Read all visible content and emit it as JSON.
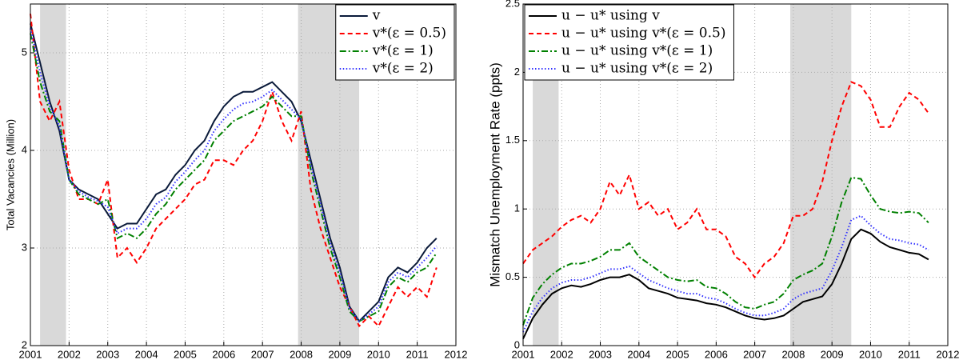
{
  "chart_data": [
    {
      "type": "line",
      "ylabel": "Total Vacancies (Million)",
      "legend": "upper right",
      "grid": true,
      "xlim": [
        2001,
        2012
      ],
      "xticks": [
        2001,
        2002,
        2003,
        2004,
        2005,
        2006,
        2007,
        2008,
        2009,
        2010,
        2011,
        2012
      ],
      "ylim": [
        2,
        5.5
      ],
      "yticks": [
        2,
        3,
        4,
        5
      ],
      "shaded_regions": [
        [
          2001.25,
          2001.92
        ],
        [
          2007.92,
          2009.5
        ]
      ],
      "x": [
        2001,
        2001.25,
        2001.5,
        2001.75,
        2002,
        2002.25,
        2002.5,
        2002.75,
        2003,
        2003.25,
        2003.5,
        2003.75,
        2004,
        2004.25,
        2004.5,
        2004.75,
        2005,
        2005.25,
        2005.5,
        2005.75,
        2006,
        2006.25,
        2006.5,
        2006.75,
        2007,
        2007.25,
        2007.5,
        2007.75,
        2008,
        2008.25,
        2008.5,
        2008.75,
        2009,
        2009.25,
        2009.5,
        2009.75,
        2010,
        2010.25,
        2010.5,
        2010.75,
        2011,
        2011.25,
        2011.5
      ],
      "series": [
        {
          "name": "v",
          "color": "#0a1a3a",
          "style": "solid",
          "values": [
            5.3,
            4.9,
            4.5,
            4.2,
            3.7,
            3.6,
            3.55,
            3.5,
            3.35,
            3.2,
            3.25,
            3.25,
            3.4,
            3.55,
            3.6,
            3.75,
            3.85,
            4.0,
            4.1,
            4.3,
            4.45,
            4.55,
            4.6,
            4.6,
            4.65,
            4.7,
            4.6,
            4.5,
            4.3,
            3.9,
            3.5,
            3.1,
            2.8,
            2.4,
            2.25,
            2.35,
            2.45,
            2.7,
            2.8,
            2.75,
            2.85,
            3.0,
            3.1
          ]
        },
        {
          "name": "v*(ε = 0.5)",
          "color": "#ff0000",
          "style": "dashed",
          "values": [
            5.4,
            4.5,
            4.3,
            4.5,
            3.8,
            3.5,
            3.5,
            3.45,
            3.7,
            2.9,
            3.0,
            2.85,
            3.0,
            3.2,
            3.3,
            3.4,
            3.5,
            3.65,
            3.7,
            3.9,
            3.9,
            3.85,
            4.0,
            4.1,
            4.3,
            4.6,
            4.3,
            4.1,
            4.4,
            3.6,
            3.2,
            2.9,
            2.6,
            2.4,
            2.2,
            2.3,
            2.2,
            2.4,
            2.6,
            2.5,
            2.6,
            2.5,
            2.8
          ]
        },
        {
          "name": "v*(ε = 1)",
          "color": "#008000",
          "style": "dashdot",
          "values": [
            5.2,
            4.7,
            4.4,
            4.3,
            3.7,
            3.55,
            3.5,
            3.45,
            3.5,
            3.1,
            3.15,
            3.1,
            3.2,
            3.35,
            3.45,
            3.6,
            3.7,
            3.8,
            3.9,
            4.1,
            4.2,
            4.3,
            4.35,
            4.4,
            4.45,
            4.55,
            4.45,
            4.35,
            4.35,
            3.8,
            3.4,
            3.0,
            2.7,
            2.35,
            2.25,
            2.3,
            2.35,
            2.6,
            2.7,
            2.65,
            2.75,
            2.8,
            2.95
          ]
        },
        {
          "name": "v*(ε = 2)",
          "color": "#3333ff",
          "style": "dotted",
          "values": [
            5.25,
            4.8,
            4.45,
            4.25,
            3.7,
            3.58,
            3.52,
            3.48,
            3.42,
            3.15,
            3.2,
            3.2,
            3.3,
            3.45,
            3.52,
            3.68,
            3.78,
            3.9,
            4.0,
            4.2,
            4.32,
            4.42,
            4.48,
            4.5,
            4.55,
            4.62,
            4.52,
            4.42,
            4.32,
            3.85,
            3.45,
            3.05,
            2.75,
            2.38,
            2.25,
            2.32,
            2.4,
            2.65,
            2.75,
            2.7,
            2.8,
            2.9,
            3.02
          ]
        }
      ]
    },
    {
      "type": "line",
      "ylabel": "Mismatch Unemployment Rate (ppts)",
      "legend": "upper left",
      "grid": true,
      "xlim": [
        2001,
        2012
      ],
      "xticks": [
        2001,
        2002,
        2003,
        2004,
        2005,
        2006,
        2007,
        2008,
        2009,
        2010,
        2011,
        2012
      ],
      "ylim": [
        0,
        2.5
      ],
      "yticks": [
        0,
        0.5,
        1,
        1.5,
        2,
        2.5
      ],
      "shaded_regions": [
        [
          2001.25,
          2001.92
        ],
        [
          2007.92,
          2009.5
        ]
      ],
      "x": [
        2001,
        2001.25,
        2001.5,
        2001.75,
        2002,
        2002.25,
        2002.5,
        2002.75,
        2003,
        2003.25,
        2003.5,
        2003.75,
        2004,
        2004.25,
        2004.5,
        2004.75,
        2005,
        2005.25,
        2005.5,
        2005.75,
        2006,
        2006.25,
        2006.5,
        2006.75,
        2007,
        2007.25,
        2007.5,
        2007.75,
        2008,
        2008.25,
        2008.5,
        2008.75,
        2009,
        2009.25,
        2009.5,
        2009.75,
        2010,
        2010.25,
        2010.5,
        2010.75,
        2011,
        2011.25,
        2011.5
      ],
      "series": [
        {
          "name": "u − u* using v",
          "color": "#000000",
          "style": "solid",
          "values": [
            0.05,
            0.2,
            0.3,
            0.38,
            0.42,
            0.44,
            0.43,
            0.45,
            0.48,
            0.5,
            0.5,
            0.52,
            0.48,
            0.42,
            0.4,
            0.38,
            0.35,
            0.34,
            0.33,
            0.31,
            0.3,
            0.28,
            0.25,
            0.22,
            0.2,
            0.19,
            0.2,
            0.22,
            0.27,
            0.32,
            0.34,
            0.36,
            0.45,
            0.6,
            0.78,
            0.85,
            0.82,
            0.76,
            0.72,
            0.7,
            0.68,
            0.67,
            0.63
          ]
        },
        {
          "name": "u − u* using v*(ε = 0.5)",
          "color": "#ff0000",
          "style": "dashed",
          "values": [
            0.6,
            0.7,
            0.75,
            0.8,
            0.87,
            0.92,
            0.95,
            0.9,
            1.0,
            1.2,
            1.1,
            1.25,
            1.0,
            1.05,
            0.95,
            1.0,
            0.85,
            0.9,
            1.0,
            0.85,
            0.85,
            0.8,
            0.65,
            0.6,
            0.5,
            0.6,
            0.65,
            0.75,
            0.95,
            0.95,
            1.0,
            1.2,
            1.5,
            1.75,
            1.93,
            1.9,
            1.8,
            1.6,
            1.6,
            1.75,
            1.85,
            1.8,
            1.7
          ]
        },
        {
          "name": "u − u* using v*(ε = 1)",
          "color": "#008000",
          "style": "dashdot",
          "values": [
            0.15,
            0.35,
            0.45,
            0.52,
            0.57,
            0.6,
            0.6,
            0.62,
            0.65,
            0.7,
            0.7,
            0.75,
            0.65,
            0.6,
            0.55,
            0.5,
            0.48,
            0.47,
            0.48,
            0.43,
            0.42,
            0.38,
            0.32,
            0.28,
            0.27,
            0.3,
            0.32,
            0.38,
            0.48,
            0.52,
            0.55,
            0.6,
            0.8,
            1.05,
            1.23,
            1.22,
            1.1,
            1.0,
            0.98,
            0.97,
            0.98,
            0.97,
            0.9
          ]
        },
        {
          "name": "u − u* using v*(ε = 2)",
          "color": "#3333ff",
          "style": "dotted",
          "values": [
            0.1,
            0.25,
            0.35,
            0.42,
            0.46,
            0.48,
            0.48,
            0.5,
            0.53,
            0.56,
            0.56,
            0.58,
            0.53,
            0.48,
            0.45,
            0.42,
            0.4,
            0.38,
            0.38,
            0.35,
            0.34,
            0.31,
            0.27,
            0.24,
            0.22,
            0.22,
            0.24,
            0.27,
            0.34,
            0.38,
            0.4,
            0.42,
            0.55,
            0.72,
            0.92,
            0.95,
            0.88,
            0.82,
            0.78,
            0.77,
            0.75,
            0.74,
            0.7
          ]
        }
      ]
    }
  ]
}
